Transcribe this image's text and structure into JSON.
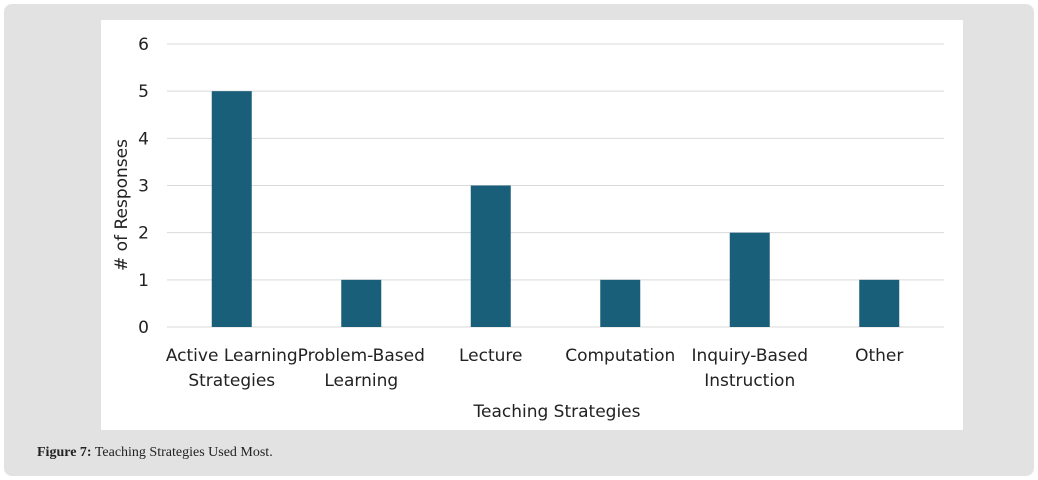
{
  "chart_data": {
    "type": "bar",
    "categories": [
      [
        "Active Learning",
        "Strategies"
      ],
      [
        "Problem-Based",
        "Learning"
      ],
      [
        "Lecture"
      ],
      [
        "Computation"
      ],
      [
        "Inquiry-Based",
        "Instruction"
      ],
      [
        "Other"
      ]
    ],
    "values": [
      5,
      1,
      3,
      1,
      2,
      1
    ],
    "xlabel": "Teaching Strategies",
    "ylabel": "# of Responses",
    "ylim": [
      0,
      6
    ],
    "yticks": [
      0,
      1,
      2,
      3,
      4,
      5,
      6
    ],
    "grid": true,
    "legend": "none",
    "bar_color": "#1a5f7a"
  },
  "caption": {
    "label": "Figure 7:",
    "text": " Teaching Strategies Used Most."
  }
}
